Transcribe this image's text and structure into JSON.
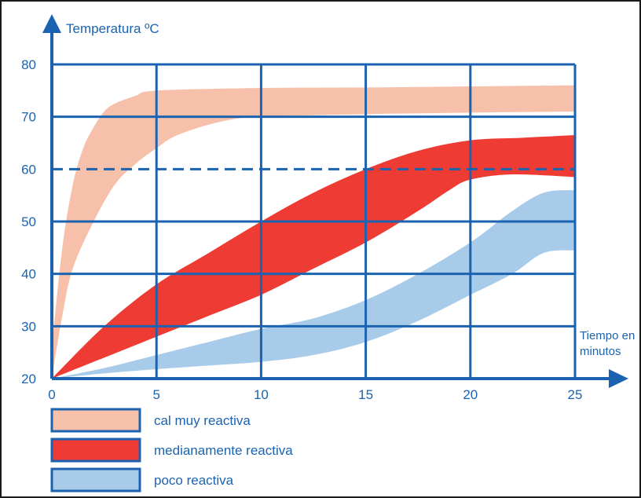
{
  "chart_data": {
    "type": "area",
    "ylabel": "Temperatura ºC",
    "xlabel_lines": [
      "Tiempo en",
      "minutos"
    ],
    "xlim": [
      0,
      25
    ],
    "ylim": [
      20,
      80
    ],
    "x_ticks": [
      "0",
      "5",
      "10",
      "15",
      "20",
      "25"
    ],
    "y_ticks": [
      "20",
      "30",
      "40",
      "50",
      "60",
      "70",
      "80"
    ],
    "grid": true,
    "reference_line": {
      "y": 60,
      "style": "dashed"
    },
    "series": [
      {
        "name": "cal muy reactiva",
        "color": "#f7c0aa",
        "upper": [
          [
            0,
            26
          ],
          [
            0.5,
            45
          ],
          [
            1,
            57
          ],
          [
            1.5,
            64
          ],
          [
            2,
            68
          ],
          [
            2.5,
            71
          ],
          [
            3,
            72.5
          ],
          [
            4,
            74
          ],
          [
            5,
            75
          ],
          [
            10,
            75.5
          ],
          [
            15,
            75.6
          ],
          [
            20,
            75.8
          ],
          [
            25,
            76
          ]
        ],
        "lower": [
          [
            0,
            20
          ],
          [
            0.5,
            32
          ],
          [
            1,
            41
          ],
          [
            2,
            50
          ],
          [
            3,
            57
          ],
          [
            4,
            61
          ],
          [
            5,
            64
          ],
          [
            6,
            66.5
          ],
          [
            8,
            69
          ],
          [
            10,
            70
          ],
          [
            15,
            70.5
          ],
          [
            20,
            70.8
          ],
          [
            25,
            71
          ]
        ]
      },
      {
        "name": "medianamente reactiva",
        "color": "#ee3b34",
        "upper": [
          [
            0,
            20
          ],
          [
            2.5,
            30
          ],
          [
            5,
            38
          ],
          [
            7.5,
            44
          ],
          [
            10,
            50
          ],
          [
            12.5,
            55.5
          ],
          [
            15,
            60
          ],
          [
            17.5,
            63.5
          ],
          [
            20,
            65.5
          ],
          [
            22.5,
            66
          ],
          [
            25,
            66.5
          ]
        ],
        "lower": [
          [
            0,
            20
          ],
          [
            2.5,
            24
          ],
          [
            5,
            28
          ],
          [
            7.5,
            32
          ],
          [
            10,
            36
          ],
          [
            12.5,
            41
          ],
          [
            15,
            46
          ],
          [
            17.5,
            52
          ],
          [
            19,
            56
          ],
          [
            20,
            58
          ],
          [
            22,
            59
          ],
          [
            25,
            58.5
          ]
        ]
      },
      {
        "name": "poco reactiva",
        "color": "#a9cbea",
        "upper": [
          [
            0,
            20
          ],
          [
            2.5,
            22
          ],
          [
            5,
            24.5
          ],
          [
            7.5,
            27
          ],
          [
            10,
            29.5
          ],
          [
            12.5,
            31.5
          ],
          [
            15,
            35
          ],
          [
            17.5,
            40
          ],
          [
            20,
            46
          ],
          [
            22,
            52
          ],
          [
            23.5,
            55.5
          ],
          [
            25,
            56
          ]
        ],
        "lower": [
          [
            0,
            20
          ],
          [
            2.5,
            21
          ],
          [
            5,
            21.8
          ],
          [
            7.5,
            22.5
          ],
          [
            10,
            23.2
          ],
          [
            12.5,
            24.5
          ],
          [
            15,
            27
          ],
          [
            17.5,
            31
          ],
          [
            20,
            36
          ],
          [
            22,
            40
          ],
          [
            23.5,
            44
          ],
          [
            25,
            44.5
          ]
        ]
      }
    ],
    "legend": [
      {
        "label": "cal muy reactiva",
        "color": "#f7c0aa"
      },
      {
        "label": "medianamente reactiva",
        "color": "#ee3b34"
      },
      {
        "label": "poco reactiva",
        "color": "#a9cbea"
      }
    ],
    "axis_color": "#1b63b0"
  }
}
